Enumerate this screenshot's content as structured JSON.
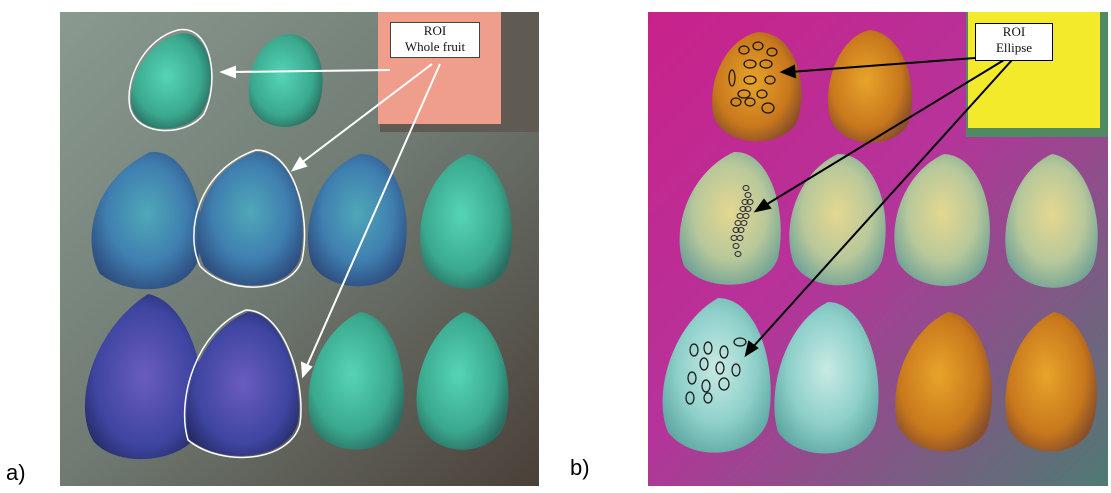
{
  "panels": [
    {
      "label": "a)",
      "roi_title": "ROI",
      "roi_subtitle": "Whole fruit"
    },
    {
      "label": "b)",
      "roi_title": "ROI",
      "roi_subtitle": "Ellipse"
    }
  ],
  "colors": {
    "fruit_teal": "#3fbfa4",
    "fruit_blue": "#4a4fb0",
    "fruit_orange": "#d68a1a",
    "background_magenta": "#d82a98",
    "roi_card_a": "#ef9e8c",
    "roi_card_b": "#f2ea2a",
    "outline": "#ffffff",
    "arrow_a": "#ffffff",
    "arrow_b": "#000000"
  }
}
